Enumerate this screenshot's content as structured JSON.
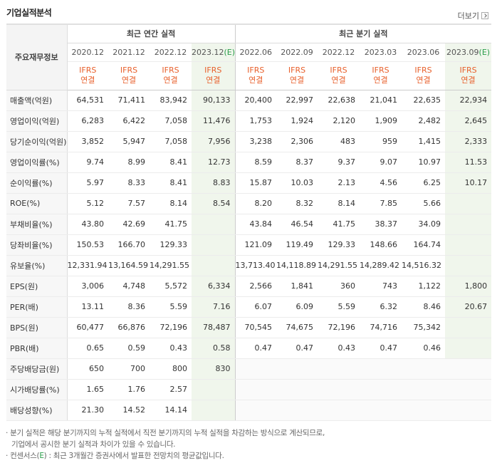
{
  "header": {
    "title": "기업실적분석",
    "more_label": "더보기"
  },
  "table": {
    "corner_label": "주요재무정보",
    "annual_group": "최근 연간 실적",
    "quarter_group": "최근 분기 실적",
    "annual_periods": [
      "2020.12",
      "2021.12",
      "2022.12",
      "2023.12(E)"
    ],
    "quarter_periods": [
      "2022.06",
      "2022.09",
      "2022.12",
      "2023.03",
      "2023.06",
      "2023.09(E)"
    ],
    "ifrs_line1": "IFRS",
    "ifrs_line2": "연결",
    "rows": [
      {
        "label": "매출액(억원)",
        "group_start": true,
        "annual": [
          "64,531",
          "71,411",
          "83,942",
          "90,133"
        ],
        "quarter": [
          "20,400",
          "22,997",
          "22,638",
          "21,041",
          "22,635",
          "22,934"
        ]
      },
      {
        "label": "영업이익(억원)",
        "annual": [
          "6,283",
          "6,422",
          "7,058",
          "11,476"
        ],
        "quarter": [
          "1,753",
          "1,924",
          "2,120",
          "1,909",
          "2,482",
          "2,645"
        ]
      },
      {
        "label": "당기순이익(억원)",
        "annual": [
          "3,852",
          "5,947",
          "7,058",
          "7,956"
        ],
        "quarter": [
          "3,238",
          "2,306",
          "483",
          "959",
          "1,415",
          "2,333"
        ]
      },
      {
        "label": "영업이익률(%)",
        "group_start": true,
        "annual": [
          "9.74",
          "8.99",
          "8.41",
          "12.73"
        ],
        "quarter": [
          "8.59",
          "8.37",
          "9.37",
          "9.07",
          "10.97",
          "11.53"
        ]
      },
      {
        "label": "순이익률(%)",
        "annual": [
          "5.97",
          "8.33",
          "8.41",
          "8.83"
        ],
        "quarter": [
          "15.87",
          "10.03",
          "2.13",
          "4.56",
          "6.25",
          "10.17"
        ]
      },
      {
        "label": "ROE(%)",
        "annual": [
          "5.12",
          "7.57",
          "8.14",
          "8.54"
        ],
        "quarter": [
          "8.20",
          "8.32",
          "8.14",
          "7.85",
          "5.66",
          ""
        ]
      },
      {
        "label": "부채비율(%)",
        "group_start": true,
        "annual": [
          "43.80",
          "42.69",
          "41.75",
          ""
        ],
        "quarter": [
          "43.84",
          "46.54",
          "41.75",
          "38.37",
          "34.09",
          ""
        ]
      },
      {
        "label": "당좌비율(%)",
        "annual": [
          "150.53",
          "166.70",
          "129.33",
          ""
        ],
        "quarter": [
          "121.09",
          "119.49",
          "129.33",
          "148.66",
          "164.74",
          ""
        ]
      },
      {
        "label": "유보율(%)",
        "annual": [
          "12,331.94",
          "13,164.59",
          "14,291.55",
          ""
        ],
        "quarter": [
          "13,713.40",
          "14,118.89",
          "14,291.55",
          "14,289.42",
          "14,516.32",
          ""
        ]
      },
      {
        "label": "EPS(원)",
        "group_start": true,
        "annual": [
          "3,006",
          "4,748",
          "5,572",
          "6,334"
        ],
        "quarter": [
          "2,566",
          "1,841",
          "360",
          "743",
          "1,122",
          "1,800"
        ]
      },
      {
        "label": "PER(배)",
        "annual": [
          "13.11",
          "8.36",
          "5.59",
          "7.16"
        ],
        "quarter": [
          "6.07",
          "6.09",
          "5.59",
          "6.32",
          "8.46",
          "20.67"
        ]
      },
      {
        "label": "BPS(원)",
        "annual": [
          "60,477",
          "66,876",
          "72,196",
          "78,487"
        ],
        "quarter": [
          "70,545",
          "74,675",
          "72,196",
          "74,716",
          "75,342",
          ""
        ]
      },
      {
        "label": "PBR(배)",
        "annual": [
          "0.65",
          "0.59",
          "0.43",
          "0.58"
        ],
        "quarter": [
          "0.47",
          "0.47",
          "0.43",
          "0.47",
          "0.46",
          ""
        ]
      },
      {
        "label": "주당배당금(원)",
        "group_start": true,
        "annual": [
          "650",
          "700",
          "800",
          "830"
        ],
        "quarter": [
          "",
          "",
          "",
          "",
          "",
          ""
        ]
      },
      {
        "label": "시가배당률(%)",
        "annual": [
          "1.65",
          "1.76",
          "2.57",
          ""
        ],
        "quarter": [
          "",
          "",
          "",
          "",
          "",
          ""
        ]
      },
      {
        "label": "배당성향(%)",
        "annual": [
          "21.30",
          "14.52",
          "14.14",
          ""
        ],
        "quarter": [
          "",
          "",
          "",
          "",
          "",
          ""
        ]
      }
    ]
  },
  "notes": {
    "line1": "분기 실적은 해당 분기까지의 누적 실적에서 직전 분기까지의 누적 실적을 차감하는 방식으로 계산되므로,",
    "line2": "기업에서 공시한 분기 실적과 차이가 있을 수 있습니다.",
    "line3_prefix": "컨센서스(",
    "line3_mark": "E",
    "line3_suffix": ") : 최근 3개월간 증권사에서 발표한 전망치의 평균값입니다."
  },
  "colors": {
    "ifrs": "#e8602c",
    "estimate_bg": "#f0f6ec",
    "estimate_mark": "#2a9d4a"
  }
}
